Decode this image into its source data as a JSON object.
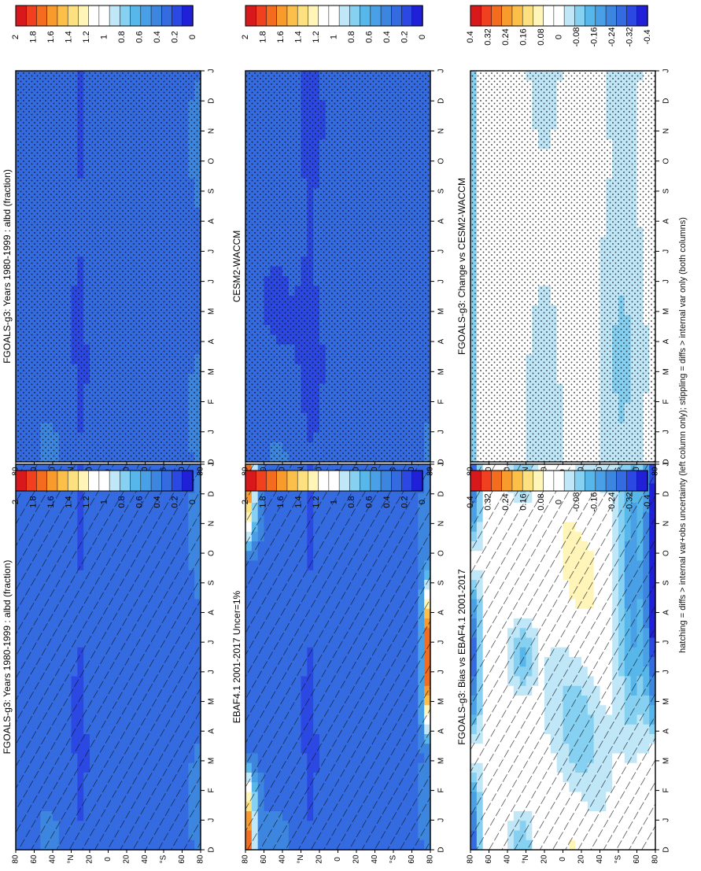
{
  "figure": {
    "footnote": "hatching = diffs > internal var+obs uncertainty (left column only); stippling = diffs > internal var only (both columns)",
    "month_ticks": [
      "D",
      "J",
      "F",
      "M",
      "A",
      "M",
      "J",
      "J",
      "A",
      "S",
      "O",
      "N",
      "D",
      "J"
    ],
    "lat_ticks": [
      "80",
      "60",
      "40",
      "°N",
      "20",
      "0",
      "20",
      "40",
      "°S",
      "60",
      "80"
    ]
  },
  "scales": {
    "abs": {
      "labels": [
        "2",
        "1.8",
        "1.6",
        "1.4",
        "1.2",
        "1",
        "0.8",
        "0.6",
        "0.4",
        "0.2",
        "0"
      ],
      "colors": [
        "#d7191c",
        "#f0401f",
        "#f46d1f",
        "#f89a2c",
        "#fbbf4a",
        "#fde180",
        "#fff5b8",
        "#ffffff",
        "#ffffff",
        "#bfe7f8",
        "#86d0f2",
        "#57b7ea",
        "#4aa0e6",
        "#3d86e0",
        "#346be0",
        "#2c48e2",
        "#2020d8"
      ]
    },
    "diff": {
      "labels": [
        "0.4",
        "0.32",
        "0.24",
        "0.16",
        "0.08",
        "0",
        "-0.08",
        "-0.16",
        "-0.24",
        "-0.32",
        "-0.4"
      ],
      "colors": [
        "#d7191c",
        "#f0401f",
        "#f46d1f",
        "#f89a2c",
        "#fbbf4a",
        "#fde180",
        "#fff5b8",
        "#ffffff",
        "#ffffff",
        "#bfe7f8",
        "#86d0f2",
        "#57b7ea",
        "#4aa0e6",
        "#3d86e0",
        "#346be0",
        "#2c48e2",
        "#2020d8"
      ]
    }
  },
  "chart_data": [
    {
      "type": "heatmap",
      "title": "FGOALS-g3: Years 1980-1999 : albd (fraction)",
      "x": "month (D to J)",
      "y": "latitude (80°N to 80°S)",
      "variable": "albd",
      "units": "fraction",
      "scale": "abs",
      "overlay": "hatching",
      "field": "model_clim"
    },
    {
      "type": "heatmap",
      "title": "FGOALS-g3: Years 1980-1999 : albd (fraction)",
      "x": "month (D to J)",
      "y": "latitude (80°N to 80°S)",
      "variable": "albd",
      "units": "fraction",
      "scale": "abs",
      "overlay": "stippling",
      "field": "model_clim"
    },
    {
      "type": "heatmap",
      "title": "EBAF4.1 2001-2017 Uncer=1%",
      "x": "month (D to J)",
      "y": "latitude (80°N to 80°S)",
      "variable": "albd",
      "units": "fraction",
      "scale": "abs",
      "overlay": "hatching",
      "field": "obs_clim"
    },
    {
      "type": "heatmap",
      "title": "CESM2-WACCM",
      "x": "month (D to J)",
      "y": "latitude (80°N to 80°S)",
      "variable": "albd",
      "units": "fraction",
      "scale": "abs",
      "overlay": "stippling",
      "field": "ref_clim"
    },
    {
      "type": "heatmap",
      "title": "FGOALS-g3: Bias vs EBAF4.1 2001-2017",
      "x": "month (D to J)",
      "y": "latitude (80°N to 80°S)",
      "variable": "albd",
      "units": "fraction",
      "scale": "diff",
      "overlay": "hatching",
      "field": "bias"
    },
    {
      "type": "heatmap",
      "title": "FGOALS-g3: Change vs CESM2-WACCM",
      "x": "month (D to J)",
      "y": "latitude (80°N to 80°S)",
      "variable": "albd",
      "units": "fraction",
      "scale": "diff",
      "overlay": "stippling",
      "field": "change"
    }
  ]
}
